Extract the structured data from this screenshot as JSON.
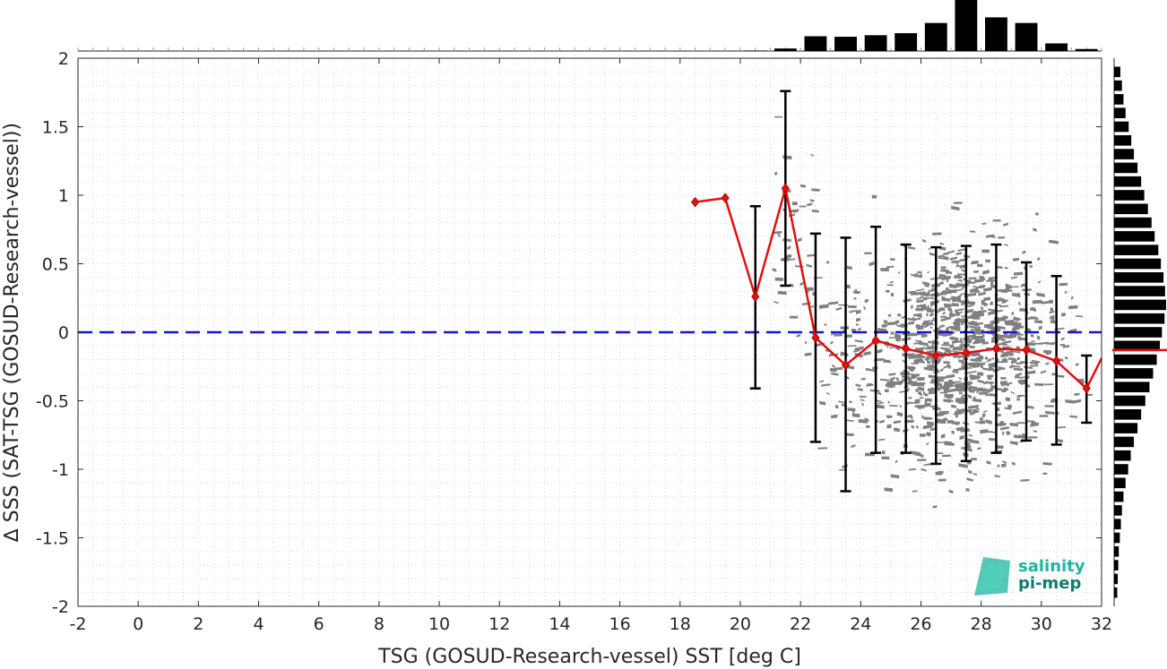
{
  "chart_data": {
    "type": "scatter",
    "xlabel": "TSG (GOSUD-Research-vessel) SST [deg C]",
    "ylabel": "∆ SSS (SAT-TSG (GOSUD-Research-vessel))",
    "xlim": [
      -2,
      32
    ],
    "ylim": [
      -2,
      2
    ],
    "x_ticks": [
      -2,
      0,
      2,
      4,
      6,
      8,
      10,
      12,
      14,
      16,
      18,
      20,
      22,
      24,
      26,
      28,
      30,
      32
    ],
    "y_ticks": [
      2,
      1.5,
      1,
      0.5,
      0,
      -0.5,
      -1,
      -1.5,
      -2
    ],
    "grid": true,
    "reference_line": {
      "y": 0,
      "color": "#1515d6",
      "style": "dashed"
    },
    "scatter_color": "#808080",
    "scatter_extent": {
      "x_range": [
        20.5,
        32
      ],
      "y_range": [
        -2,
        2
      ]
    },
    "series": [
      {
        "color": "#e01010",
        "x": [
          18.5,
          19.5,
          20.5,
          21.5,
          22.5,
          23.5,
          24.5,
          25.5,
          26.5,
          27.5,
          28.5,
          29.5,
          30.5,
          31.5,
          32
        ],
        "y": [
          0.95,
          0.98,
          0.26,
          1.05,
          -0.04,
          -0.24,
          -0.06,
          -0.12,
          -0.17,
          -0.15,
          -0.12,
          -0.13,
          -0.21,
          -0.41,
          -0.19
        ]
      }
    ],
    "error_bars": [
      {
        "x": 20.5,
        "low": -0.41,
        "high": 0.92
      },
      {
        "x": 21.5,
        "low": 0.34,
        "high": 1.76
      },
      {
        "x": 22.5,
        "low": -0.8,
        "high": 0.72
      },
      {
        "x": 23.5,
        "low": -1.16,
        "high": 0.69
      },
      {
        "x": 24.5,
        "low": -0.88,
        "high": 0.77
      },
      {
        "x": 25.5,
        "low": -0.88,
        "high": 0.64
      },
      {
        "x": 26.5,
        "low": -0.96,
        "high": 0.62
      },
      {
        "x": 27.5,
        "low": -0.94,
        "high": 0.63
      },
      {
        "x": 28.5,
        "low": -0.88,
        "high": 0.64
      },
      {
        "x": 29.5,
        "low": -0.79,
        "high": 0.51
      },
      {
        "x": 30.5,
        "low": -0.82,
        "high": 0.41
      },
      {
        "x": 31.5,
        "low": -0.66,
        "high": -0.17
      }
    ],
    "top_histogram": {
      "bin_centers": [
        20.5,
        21.5,
        22.5,
        23.5,
        24.5,
        25.5,
        26.5,
        27.5,
        28.5,
        29.5,
        30.5,
        31.5
      ],
      "relative_counts": [
        0.01,
        0.05,
        0.29,
        0.28,
        0.31,
        0.35,
        0.55,
        1.0,
        0.66,
        0.55,
        0.15,
        0.04
      ]
    },
    "right_histogram": {
      "bin_centers": [
        1.9,
        1.8,
        1.7,
        1.6,
        1.5,
        1.4,
        1.3,
        1.2,
        1.1,
        1.0,
        0.9,
        0.8,
        0.7,
        0.6,
        0.5,
        0.4,
        0.3,
        0.2,
        0.1,
        0.0,
        -0.1,
        -0.2,
        -0.3,
        -0.4,
        -0.5,
        -0.6,
        -0.7,
        -0.8,
        -0.9,
        -1.0,
        -1.1,
        -1.2,
        -1.3,
        -1.4,
        -1.5,
        -1.6,
        -1.7,
        -1.8,
        -1.9
      ],
      "relative_counts": [
        0.12,
        0.15,
        0.18,
        0.22,
        0.28,
        0.33,
        0.38,
        0.45,
        0.52,
        0.58,
        0.65,
        0.72,
        0.78,
        0.85,
        0.9,
        0.95,
        0.98,
        1.0,
        0.97,
        0.92,
        0.88,
        0.82,
        0.75,
        0.68,
        0.6,
        0.52,
        0.45,
        0.38,
        0.32,
        0.27,
        0.22,
        0.18,
        0.15,
        0.13,
        0.11,
        0.09,
        0.08,
        0.07,
        0.06
      ],
      "mean_line": {
        "y": -0.13,
        "color": "#e01010"
      }
    },
    "marker_color": "#e01010",
    "errorbar_color": "#000000"
  },
  "logo": {
    "line1": "salinity",
    "line2": "pi-mep",
    "color1": "#1fb5a0",
    "color2": "#137a6e"
  }
}
